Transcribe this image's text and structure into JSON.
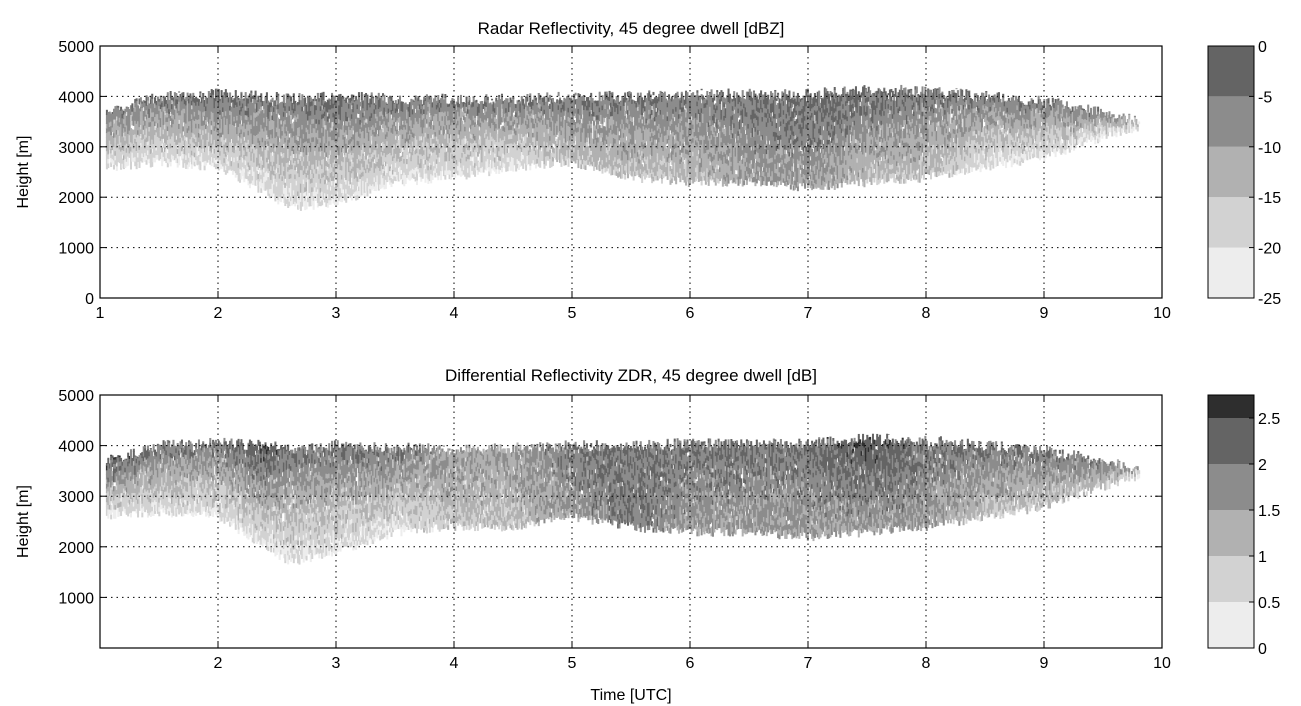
{
  "chart_data": [
    {
      "type": "heatmap",
      "title": "Radar Reflectivity, 45 degree dwell [dBZ]",
      "xlabel": "",
      "ylabel": "Height [m]",
      "xlim": [
        1,
        10
      ],
      "ylim": [
        0,
        5000
      ],
      "x_ticks": [
        "1",
        "2",
        "3",
        "4",
        "5",
        "6",
        "7",
        "8",
        "9",
        "10"
      ],
      "y_ticks": [
        "0",
        "1000",
        "2000",
        "3000",
        "4000",
        "5000"
      ],
      "grid": true,
      "colormap": "gray",
      "colorbar": {
        "range": [
          -25,
          0
        ],
        "ticks": [
          "0",
          "-5",
          "-10",
          "-15",
          "-20",
          "-25"
        ],
        "levels": [
          -25,
          -20,
          -15,
          -10,
          -5,
          0
        ],
        "colors": [
          "#ededed",
          "#d2d2d2",
          "#b1b1b1",
          "#8c8c8c",
          "#646464",
          "#2e2e2e"
        ]
      },
      "echo_layer": {
        "time": [
          1.05,
          1.5,
          2.0,
          2.4,
          2.6,
          3.0,
          3.5,
          4.0,
          4.5,
          5.0,
          5.5,
          6.0,
          6.5,
          7.0,
          7.5,
          8.0,
          8.5,
          9.0,
          9.5,
          9.8
        ],
        "top_m": [
          3700,
          4000,
          4050,
          4000,
          3950,
          4000,
          3950,
          3950,
          3950,
          4000,
          4000,
          4050,
          4050,
          4050,
          4150,
          4100,
          4000,
          3900,
          3700,
          3500
        ],
        "base_m": [
          2600,
          2700,
          2600,
          2100,
          1800,
          1900,
          2300,
          2400,
          2600,
          2700,
          2400,
          2300,
          2300,
          2200,
          2300,
          2400,
          2600,
          2800,
          3200,
          3400
        ],
        "value_at_top": [
          -5,
          -5,
          -3,
          -5,
          -5,
          -3,
          -5,
          -5,
          -5,
          -5,
          -5,
          -5,
          -5,
          -3,
          -3,
          -5,
          -5,
          -5,
          -5,
          -10
        ],
        "value_at_base": [
          -20,
          -20,
          -20,
          -20,
          -20,
          -20,
          -20,
          -20,
          -20,
          -15,
          -15,
          -15,
          -10,
          -10,
          -15,
          -15,
          -20,
          -20,
          -20,
          -20
        ]
      }
    },
    {
      "type": "heatmap",
      "title": "Differential Reflectivity ZDR, 45 degree dwell [dB]",
      "xlabel": "Time [UTC]",
      "ylabel": "Height [m]",
      "xlim": [
        1,
        10
      ],
      "ylim": [
        0,
        5000
      ],
      "x_ticks": [
        "2",
        "3",
        "4",
        "5",
        "6",
        "7",
        "8",
        "9",
        "10"
      ],
      "y_ticks": [
        "1000",
        "2000",
        "3000",
        "4000",
        "5000"
      ],
      "grid": true,
      "colormap": "gray",
      "colorbar": {
        "range": [
          0,
          2.75
        ],
        "ticks": [
          "2.5",
          "2",
          "1.5",
          "1",
          "0.5",
          "0"
        ],
        "levels": [
          0,
          0.5,
          1,
          1.5,
          2,
          2.5
        ],
        "colors": [
          "#ededed",
          "#d2d2d2",
          "#b1b1b1",
          "#8c8c8c",
          "#646464",
          "#2e2e2e"
        ]
      },
      "echo_layer": {
        "time": [
          1.05,
          1.5,
          2.0,
          2.4,
          2.6,
          3.0,
          3.5,
          4.0,
          4.5,
          5.0,
          5.5,
          6.0,
          6.5,
          7.0,
          7.5,
          8.0,
          8.5,
          9.0,
          9.5,
          9.8
        ],
        "top_m": [
          3700,
          4000,
          4050,
          4000,
          3950,
          4000,
          3950,
          3950,
          3950,
          4000,
          4000,
          4050,
          4050,
          4050,
          4150,
          4100,
          4000,
          3900,
          3700,
          3500
        ],
        "base_m": [
          2600,
          2700,
          2600,
          2000,
          1700,
          1900,
          2300,
          2400,
          2400,
          2600,
          2400,
          2300,
          2300,
          2200,
          2300,
          2400,
          2600,
          2800,
          3200,
          3400
        ],
        "value_at_top": [
          2.5,
          2,
          2,
          2.5,
          2,
          2,
          2,
          1.5,
          1.5,
          2,
          2,
          2,
          2,
          2,
          2.5,
          2,
          2,
          2,
          2,
          1.5
        ],
        "value_at_base": [
          0.5,
          0.5,
          0.5,
          0.5,
          0.5,
          0.5,
          0.5,
          1,
          1,
          1.5,
          2,
          1.5,
          1.5,
          1.5,
          1.5,
          1.5,
          1,
          1,
          1,
          0.5
        ]
      }
    }
  ]
}
